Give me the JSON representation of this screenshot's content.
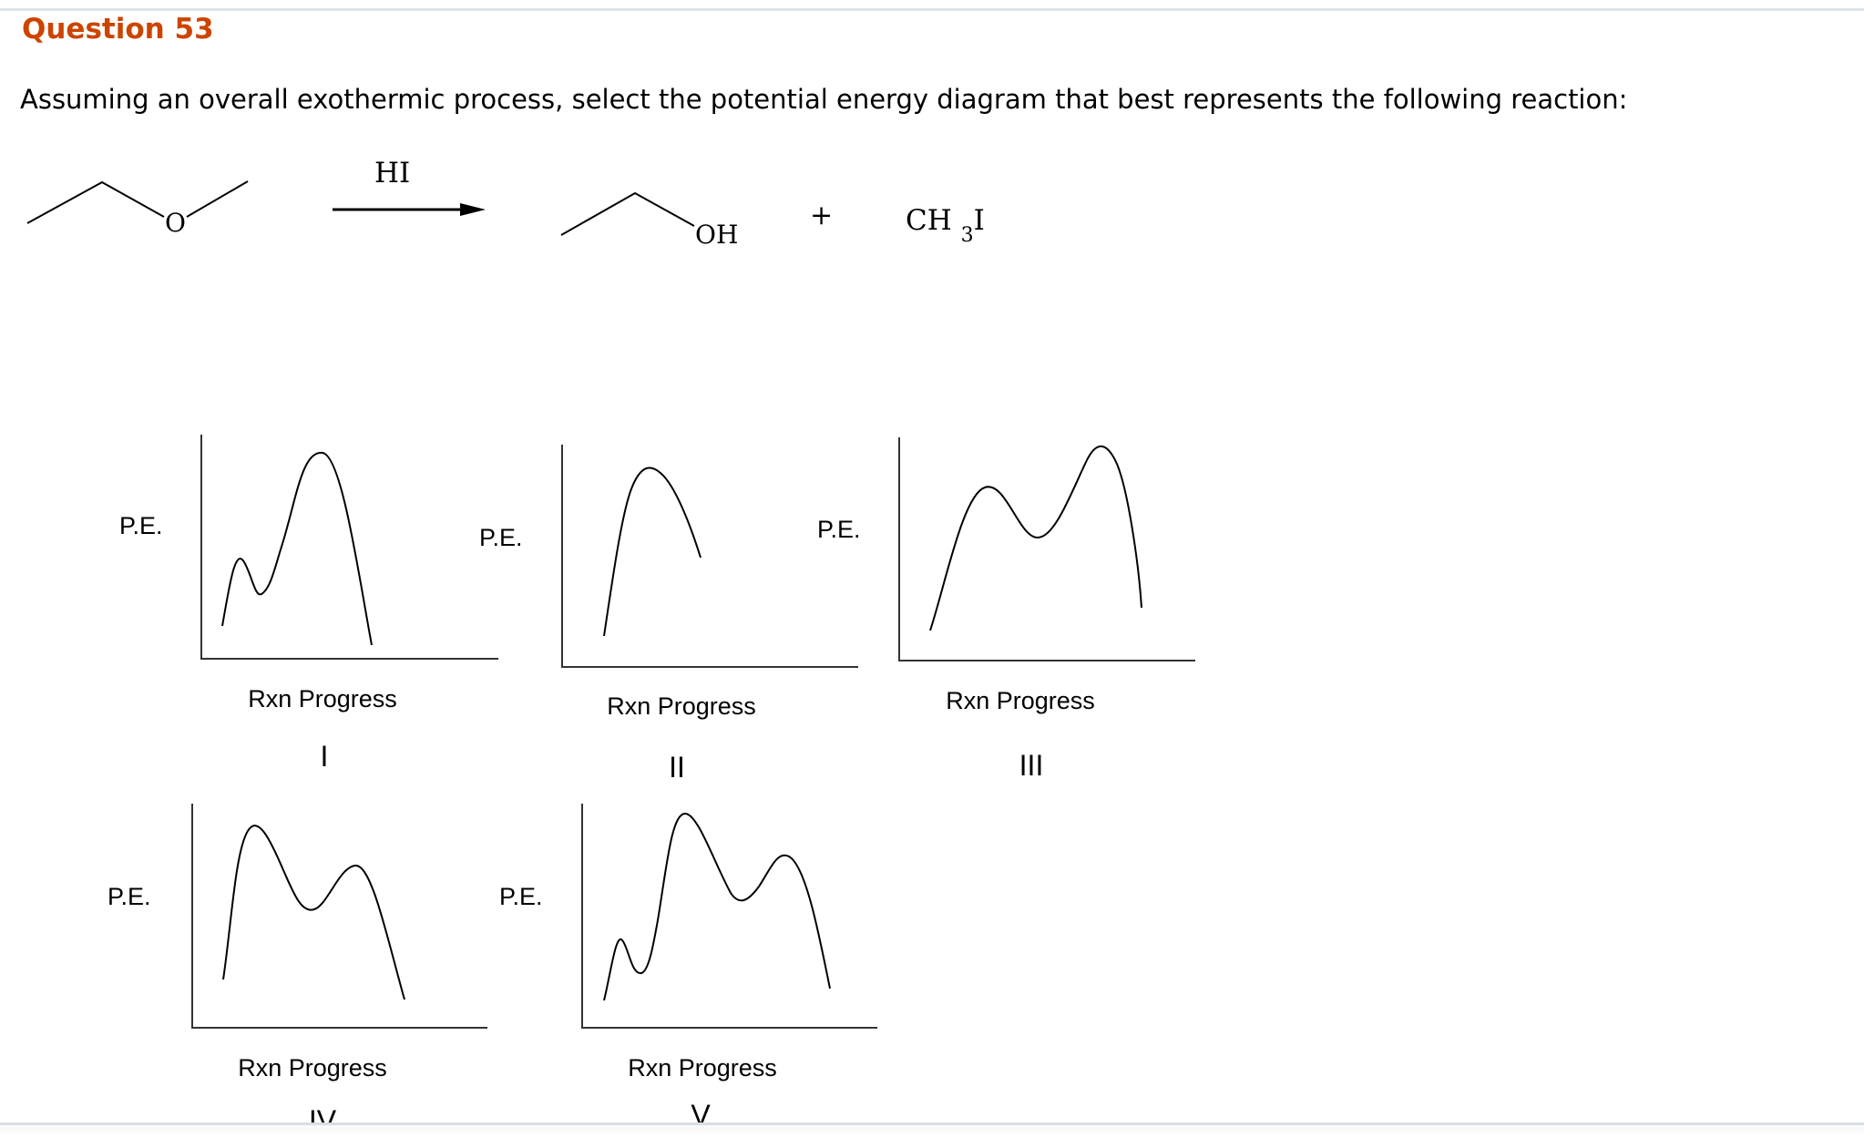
{
  "question": {
    "title": "Question 53",
    "prompt": "Assuming an overall exothermic process, select the potential energy diagram that best represents the following reaction:"
  },
  "reaction": {
    "reagent": "HI",
    "product_oh": "OH",
    "plus": "+",
    "product2": "CH3I",
    "reactant_o": "O"
  },
  "diagrams": [
    {
      "numeral": "I",
      "y_label": "P.E.",
      "x_label": "Rxn Progress"
    },
    {
      "numeral": "II",
      "y_label": "P.E.",
      "x_label": "Rxn Progress"
    },
    {
      "numeral": "III",
      "y_label": "P.E.",
      "x_label": "Rxn Progress"
    },
    {
      "numeral": "IV",
      "y_label": "P.E.",
      "x_label": "Rxn Progress"
    },
    {
      "numeral": "V",
      "y_label": "P.E.",
      "x_label": "Rxn Progress"
    }
  ]
}
